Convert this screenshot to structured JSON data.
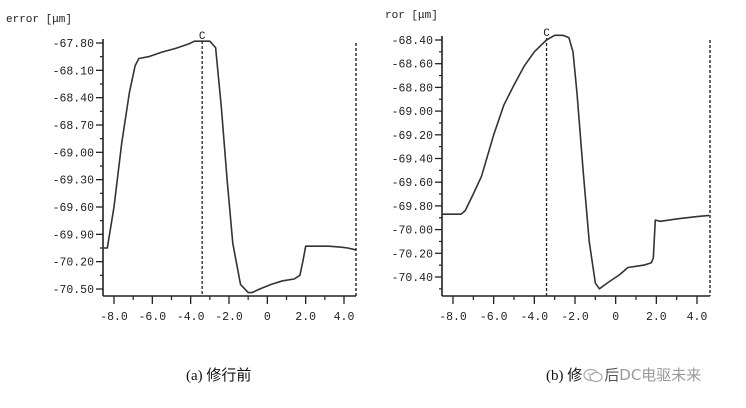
{
  "chart_data": [
    {
      "type": "line",
      "title": "",
      "caption": "(a) 修行前",
      "ylabel": "error [μm]",
      "xlabel": "",
      "xlim": [
        -8.6,
        4.6
      ],
      "ylim": [
        -70.58,
        -67.75
      ],
      "x_ticks": [
        -8.0,
        -6.0,
        -4.0,
        -2.0,
        0,
        2.0,
        4.0
      ],
      "x_tick_labels": [
        "-8.0",
        "-6.0",
        "-4.0",
        "-2.0",
        "0",
        "2.0",
        "4.0"
      ],
      "y_ticks": [
        -67.8,
        -68.1,
        -68.4,
        -68.7,
        -69.0,
        -69.3,
        -69.6,
        -69.9,
        -70.2,
        -70.5
      ],
      "y_tick_labels": [
        "-67.80",
        "-68.10",
        "-68.40",
        "-68.70",
        "-69.00",
        "-69.30",
        "-69.60",
        "-69.90",
        "-70.20",
        "-70.50"
      ],
      "grid": false,
      "marker_line": {
        "label": "C",
        "x": -3.4,
        "style": "dashed"
      },
      "right_boundary": {
        "x": 4.6,
        "style": "dashed"
      },
      "series": [
        {
          "name": "error",
          "x": [
            -8.6,
            -8.35,
            -8.0,
            -7.6,
            -7.2,
            -6.9,
            -6.7,
            -6.2,
            -5.5,
            -4.8,
            -4.1,
            -3.8,
            -3.4,
            -3.0,
            -2.7,
            -2.4,
            -2.1,
            -1.8,
            -1.4,
            -1.0,
            -0.8,
            -0.4,
            0.2,
            0.8,
            1.4,
            1.7,
            1.85,
            2.0,
            2.6,
            3.2,
            3.8,
            4.2,
            4.6
          ],
          "y": [
            -70.05,
            -70.05,
            -69.6,
            -68.9,
            -68.35,
            -68.05,
            -67.97,
            -67.95,
            -67.9,
            -67.86,
            -67.81,
            -67.78,
            -67.78,
            -67.78,
            -67.85,
            -68.5,
            -69.3,
            -70.0,
            -70.45,
            -70.54,
            -70.54,
            -70.5,
            -70.45,
            -70.41,
            -70.39,
            -70.35,
            -70.2,
            -70.03,
            -70.03,
            -70.03,
            -70.04,
            -70.05,
            -70.07
          ]
        }
      ]
    },
    {
      "type": "line",
      "title": "",
      "caption": "(b) 修行后",
      "ylabel": "ror [μm]",
      "xlabel": "",
      "xlim": [
        -8.55,
        4.6
      ],
      "ylim": [
        -70.55,
        -68.33
      ],
      "x_ticks": [
        -8.0,
        -6.0,
        -4.0,
        -2.0,
        0,
        2.0,
        4.0
      ],
      "x_tick_labels": [
        "-8.0",
        "-6.0",
        "-4.0",
        "-2.0",
        "0",
        "2.0",
        "4.0"
      ],
      "y_ticks": [
        -68.4,
        -68.6,
        -68.8,
        -69.0,
        -69.2,
        -69.4,
        -69.6,
        -69.8,
        -70.0,
        -70.2,
        -70.4
      ],
      "y_tick_labels": [
        "-68.40",
        "-68.60",
        "-68.80",
        "-69.00",
        "-69.20",
        "-69.40",
        "-69.60",
        "-69.80",
        "-70.00",
        "-70.20",
        "-70.40"
      ],
      "grid": false,
      "marker_line": {
        "label": "C",
        "x": -3.4,
        "style": "dashed"
      },
      "right_boundary": {
        "x": 4.6,
        "style": "dashed"
      },
      "series": [
        {
          "name": "error",
          "x": [
            -8.55,
            -7.6,
            -7.4,
            -7.0,
            -6.6,
            -6.0,
            -5.5,
            -5.0,
            -4.5,
            -4.0,
            -3.4,
            -3.0,
            -2.6,
            -2.3,
            -2.1,
            -1.9,
            -1.6,
            -1.3,
            -1.0,
            -0.8,
            -0.4,
            0.2,
            0.6,
            1.0,
            1.4,
            1.75,
            1.85,
            1.95,
            2.2,
            3.0,
            4.0,
            4.6
          ],
          "y": [
            -69.87,
            -69.87,
            -69.84,
            -69.7,
            -69.55,
            -69.2,
            -68.95,
            -68.78,
            -68.62,
            -68.5,
            -68.4,
            -68.36,
            -68.36,
            -68.38,
            -68.5,
            -68.85,
            -69.5,
            -70.1,
            -70.45,
            -70.5,
            -70.45,
            -70.38,
            -70.32,
            -70.31,
            -70.3,
            -70.28,
            -70.24,
            -69.92,
            -69.93,
            -69.91,
            -69.89,
            -69.88
          ]
        }
      ]
    }
  ],
  "captions": {
    "left": "(a) 修行前",
    "right_prefix": "(b) 修",
    "right_suffix": "后"
  },
  "watermark": {
    "text": "DC电驱未来"
  }
}
